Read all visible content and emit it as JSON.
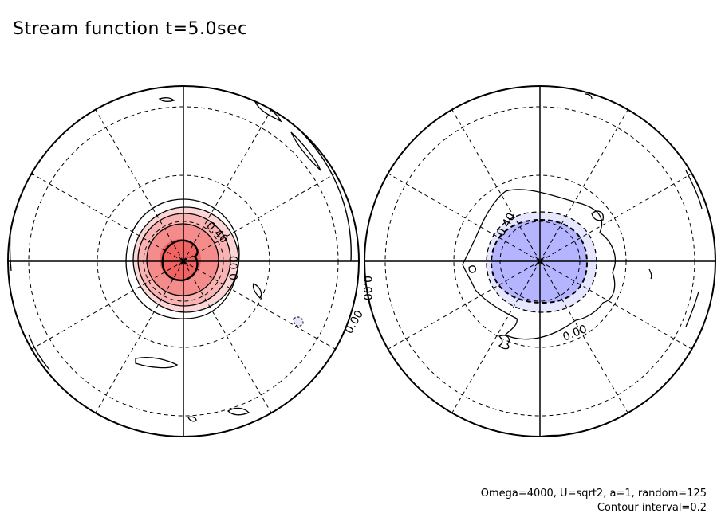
{
  "title": "Stream function t=5.0sec",
  "footer": {
    "params": "Omega=4000, U=sqrt2, a=1, random=125",
    "interval": "Contour interval=0.2"
  },
  "chart_data": [
    {
      "type": "contour",
      "projection": "polar stereographic",
      "panel": "left",
      "fill_colors": [
        "#fcd6d6",
        "#f9b3b3",
        "#f58c8c",
        "#f06464"
      ],
      "labels": [
        "0.40",
        "0.00"
      ],
      "extremum": "positive maximum near pole"
    },
    {
      "type": "contour",
      "projection": "polar stereographic",
      "panel": "right",
      "fill_colors": [
        "#e6e6ff",
        "#b4b4ff"
      ],
      "labels": [
        "-0.40",
        "0.00"
      ],
      "extremum": "negative minimum near pole"
    }
  ]
}
